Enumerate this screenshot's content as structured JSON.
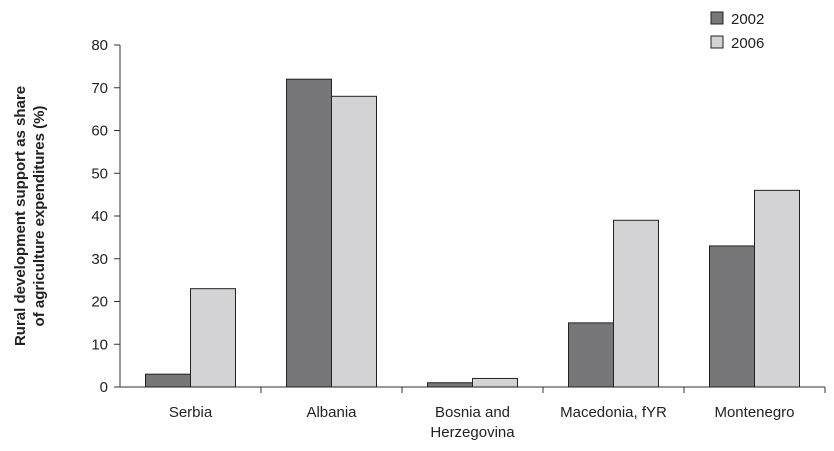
{
  "chart_data": {
    "type": "bar",
    "categories": [
      "Serbia",
      "Albania",
      "Bosnia and Herzegovina",
      "Macedonia, fYR",
      "Montenegro"
    ],
    "category_lines": [
      [
        "Serbia"
      ],
      [
        "Albania"
      ],
      [
        "Bosnia and",
        "Herzegovina"
      ],
      [
        "Macedonia, fYR"
      ],
      [
        "Montenegro"
      ]
    ],
    "series": [
      {
        "name": "2002",
        "values": [
          3,
          72,
          1,
          15,
          33
        ],
        "color": "#77777a"
      },
      {
        "name": "2006",
        "values": [
          23,
          68,
          2,
          39,
          46
        ],
        "color": "#d3d3d5"
      }
    ],
    "title": "",
    "xlabel": "",
    "ylabel_lines": [
      "Rural development support as share",
      "of agriculture expenditures (%)"
    ],
    "ylim": [
      0,
      80
    ],
    "yticks": [
      0,
      10,
      20,
      30,
      40,
      50,
      60,
      70,
      80
    ],
    "grid": false,
    "legend_position": "top-right"
  }
}
